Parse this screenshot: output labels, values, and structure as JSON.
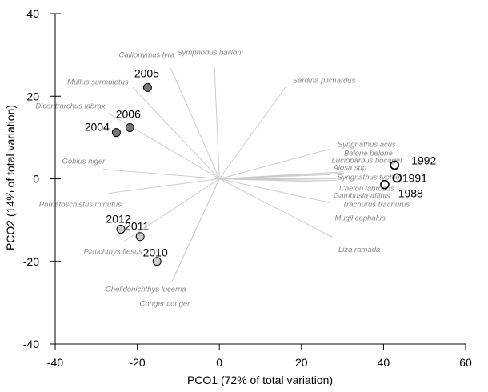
{
  "chart_data": {
    "type": "scatter",
    "title": "",
    "xlabel": "PCO1 (72% of total variation)",
    "ylabel": "PCO2 (14% of total variation)",
    "xlim": [
      -40,
      60
    ],
    "ylim": [
      -40,
      40
    ],
    "xticks": [
      -40,
      -20,
      0,
      20,
      40,
      60
    ],
    "yticks": [
      -40,
      -20,
      0,
      20,
      40
    ],
    "grid": false,
    "points": [
      {
        "label": "2004",
        "x": -25.1,
        "y": 11.2,
        "fill": "#777777",
        "lx": -29.8,
        "ly": 12.6
      },
      {
        "label": "2005",
        "x": -17.5,
        "y": 22.1,
        "fill": "#777777",
        "lx": -17.7,
        "ly": 25.6
      },
      {
        "label": "2006",
        "x": -21.8,
        "y": 12.4,
        "fill": "#777777",
        "lx": -22.2,
        "ly": 15.7
      },
      {
        "label": "2010",
        "x": -15.2,
        "y": -20.0,
        "fill": "#cccccc",
        "lx": -15.6,
        "ly": -17.8
      },
      {
        "label": "2011",
        "x": -19.3,
        "y": -14.0,
        "fill": "#cccccc",
        "lx": -20.1,
        "ly": -11.4
      },
      {
        "label": "2012",
        "x": -24.0,
        "y": -12.2,
        "fill": "#cccccc",
        "lx": -24.6,
        "ly": -9.7
      },
      {
        "label": "1988",
        "x": 40.3,
        "y": -1.4,
        "fill": "none",
        "lx": 46.6,
        "ly": -3.5
      },
      {
        "label": "1991",
        "x": 43.3,
        "y": 0.2,
        "fill": "none",
        "lx": 47.6,
        "ly": 0.2
      },
      {
        "label": "1992",
        "x": 42.7,
        "y": 3.3,
        "fill": "none",
        "lx": 49.8,
        "ly": 4.5
      }
    ],
    "vectors": [
      {
        "label": "Callionymus lyra",
        "x": -11.9,
        "y": 26.9,
        "lx": -17.7,
        "ly": 30.0
      },
      {
        "label": "Symphodus bailloni",
        "x": -1.2,
        "y": 27.3,
        "lx": -2.3,
        "ly": 30.6
      },
      {
        "label": "Sardina pilchardus",
        "x": 16.2,
        "y": 22.3,
        "lx": 25.5,
        "ly": 23.8
      },
      {
        "label": "Mullus surmuletus",
        "x": -21.1,
        "y": 22.1,
        "lx": -29.6,
        "ly": 23.4
      },
      {
        "label": "Dicentrarchus labrax",
        "x": -27.1,
        "y": 15.9,
        "lx": -36.3,
        "ly": 17.6
      },
      {
        "label": "Gobius niger",
        "x": -28.3,
        "y": 2.3,
        "lx": -33.1,
        "ly": 4.3
      },
      {
        "label": "Pomatoschistus minutus",
        "x": -27.1,
        "y": -3.5,
        "lx": -33.9,
        "ly": -6.2
      },
      {
        "label": "Platichthys flesus",
        "x": -23.2,
        "y": -15.1,
        "lx": -25.9,
        "ly": -17.6
      },
      {
        "label": "Chelidonichthys lucerna",
        "x": -11.5,
        "y": -24.8,
        "lx": -17.9,
        "ly": -26.7
      },
      {
        "label": "Conger conger",
        "x": -11.0,
        "y": -23.6,
        "lx": -13.3,
        "ly": -30.2
      },
      {
        "label": "Syngnathus acus",
        "x": 26.9,
        "y": 7.2,
        "lx": 35.9,
        "ly": 8.3
      },
      {
        "label": "Belone belone",
        "x": 30.4,
        "y": 1.7,
        "lx": 36.3,
        "ly": 6.2
      },
      {
        "label": "Luciobarbus bocagei",
        "x": 30.4,
        "y": 1.4,
        "lx": 35.9,
        "ly": 4.5
      },
      {
        "label": "Alosa spp",
        "x": 26.9,
        "y": 1.0,
        "lx": 31.8,
        "ly": 2.7
      },
      {
        "label": "Syngnathus typhle",
        "x": 28.5,
        "y": 0.0,
        "lx": 36.3,
        "ly": 0.4
      },
      {
        "label": "Chelon labrosus",
        "x": 28.5,
        "y": -0.4,
        "lx": 35.9,
        "ly": -2.3
      },
      {
        "label": "Gambusia affinis",
        "x": 27.1,
        "y": -0.8,
        "lx": 34.7,
        "ly": -4.1
      },
      {
        "label": "Trachurus trachurus",
        "x": 28.5,
        "y": -0.8,
        "lx": 38.2,
        "ly": -6.2
      },
      {
        "label": "Mugil cephalus",
        "x": 26.9,
        "y": -5.8,
        "lx": 34.3,
        "ly": -9.5
      },
      {
        "label": "Liza ramada",
        "x": 27.5,
        "y": -14.1,
        "lx": 34.1,
        "ly": -17.1
      }
    ]
  }
}
